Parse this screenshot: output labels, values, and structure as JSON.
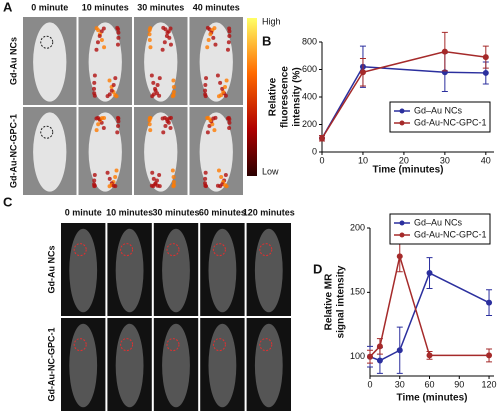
{
  "panel_a": {
    "label": "A",
    "columns": [
      "0 minute",
      "10 minutes",
      "30 minutes",
      "40 minutes"
    ],
    "rows": [
      "Gd-Au NCs",
      "Gd-Au-NC-GPC-1"
    ],
    "colorbar": {
      "high": "High",
      "low": "Low"
    }
  },
  "panel_c": {
    "label": "C",
    "columns": [
      "0 minute",
      "10 minutes",
      "30 minutes",
      "60 minutes",
      "120 minutes"
    ],
    "rows": [
      "Gd-Au NCs",
      "Gd-Au-NC-GPC-1"
    ]
  },
  "chart_data": [
    {
      "type": "line",
      "panel_label": "B",
      "x_label": "Time (minutes)",
      "y_label": [
        "Relative",
        "fluorescence",
        "intensity (%)"
      ],
      "x": [
        0,
        10,
        30,
        40
      ],
      "xlim": [
        0,
        42
      ],
      "xticks": [
        0,
        10,
        20,
        30,
        40
      ],
      "ylim": [
        0,
        800
      ],
      "yticks": [
        0,
        200,
        400,
        600,
        800
      ],
      "legend": "lower-right",
      "series": [
        {
          "name": "Gd–Au NCs",
          "color": "#2b2f9e",
          "values": [
            100,
            620,
            580,
            575
          ],
          "errors": [
            20,
            150,
            140,
            80
          ]
        },
        {
          "name": "Gd-Au-NC-GPC-1",
          "color": "#a52a2a",
          "values": [
            100,
            580,
            730,
            690
          ],
          "errors": [
            20,
            100,
            140,
            80
          ]
        }
      ]
    },
    {
      "type": "line",
      "panel_label": "D",
      "x_label": "Time (minutes)",
      "y_label": [
        "Relative MR",
        "signal intensity"
      ],
      "x": [
        0,
        10,
        30,
        60,
        120
      ],
      "xlim": [
        0,
        125
      ],
      "xticks": [
        0,
        30,
        60,
        90,
        120
      ],
      "ylim": [
        85,
        200
      ],
      "yticks": [
        100,
        150,
        200
      ],
      "legend": "upper-right",
      "series": [
        {
          "name": "Gd–Au NCs",
          "color": "#2b2f9e",
          "values": [
            100,
            97,
            105,
            165,
            142
          ],
          "errors": [
            8,
            10,
            18,
            12,
            10
          ]
        },
        {
          "name": "Gd-Au-NC-GPC-1",
          "color": "#a52a2a",
          "values": [
            100,
            108,
            178,
            101,
            101
          ],
          "errors": [
            5,
            6,
            12,
            3,
            5
          ]
        }
      ]
    }
  ]
}
